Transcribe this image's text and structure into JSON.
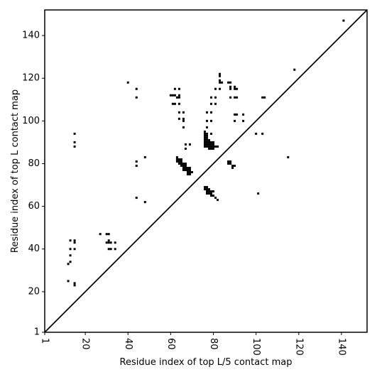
{
  "chart_data": {
    "type": "scatter",
    "title": "",
    "xlabel": "Residue index of top L/5 contact map",
    "ylabel": "Residue index of top L contact map",
    "xlim": [
      1,
      152
    ],
    "ylim": [
      1,
      152
    ],
    "xticks": [
      1,
      20,
      40,
      60,
      80,
      100,
      120,
      140
    ],
    "yticks": [
      1,
      20,
      40,
      60,
      80,
      100,
      120,
      140
    ],
    "x_tick_rotation": -90,
    "diagonal": true,
    "grid": false,
    "marker": "square",
    "color": "#000000",
    "points": [
      [
        12,
        25
      ],
      [
        12,
        33
      ],
      [
        13,
        34
      ],
      [
        13,
        37
      ],
      [
        13,
        40
      ],
      [
        13,
        44
      ],
      [
        15,
        23
      ],
      [
        15,
        24
      ],
      [
        15,
        40
      ],
      [
        15,
        43
      ],
      [
        15,
        44
      ],
      [
        15,
        88
      ],
      [
        15,
        90
      ],
      [
        15,
        94
      ],
      [
        27,
        47
      ],
      [
        30,
        43
      ],
      [
        30,
        47
      ],
      [
        31,
        40
      ],
      [
        31,
        43
      ],
      [
        31,
        44
      ],
      [
        31,
        47
      ],
      [
        32,
        40
      ],
      [
        32,
        43
      ],
      [
        34,
        40
      ],
      [
        34,
        43
      ],
      [
        40,
        118
      ],
      [
        44,
        64
      ],
      [
        44,
        79
      ],
      [
        44,
        81
      ],
      [
        44,
        111
      ],
      [
        44,
        115
      ],
      [
        48,
        62
      ],
      [
        48,
        83
      ],
      [
        60,
        112
      ],
      [
        61,
        108
      ],
      [
        61,
        112
      ],
      [
        62,
        108
      ],
      [
        62,
        112
      ],
      [
        62,
        115
      ],
      [
        63,
        81
      ],
      [
        63,
        82
      ],
      [
        63,
        83
      ],
      [
        63,
        111
      ],
      [
        64,
        80
      ],
      [
        64,
        81
      ],
      [
        64,
        82
      ],
      [
        64,
        101
      ],
      [
        64,
        104
      ],
      [
        64,
        108
      ],
      [
        64,
        111
      ],
      [
        64,
        112
      ],
      [
        64,
        115
      ],
      [
        65,
        79
      ],
      [
        65,
        80
      ],
      [
        65,
        81
      ],
      [
        65,
        82
      ],
      [
        66,
        77
      ],
      [
        66,
        78
      ],
      [
        66,
        79
      ],
      [
        66,
        80
      ],
      [
        66,
        97
      ],
      [
        66,
        100
      ],
      [
        66,
        101
      ],
      [
        66,
        104
      ],
      [
        67,
        77
      ],
      [
        67,
        78
      ],
      [
        67,
        79
      ],
      [
        67,
        80
      ],
      [
        67,
        87
      ],
      [
        67,
        89
      ],
      [
        68,
        75
      ],
      [
        68,
        76
      ],
      [
        68,
        77
      ],
      [
        68,
        78
      ],
      [
        69,
        75
      ],
      [
        69,
        76
      ],
      [
        69,
        77
      ],
      [
        69,
        78
      ],
      [
        69,
        89
      ],
      [
        70,
        76
      ],
      [
        76,
        68
      ],
      [
        76,
        69
      ],
      [
        76,
        88
      ],
      [
        76,
        89
      ],
      [
        76,
        90
      ],
      [
        76,
        91
      ],
      [
        76,
        92
      ],
      [
        76,
        93
      ],
      [
        76,
        94
      ],
      [
        76,
        95
      ],
      [
        77,
        66
      ],
      [
        77,
        67
      ],
      [
        77,
        68
      ],
      [
        77,
        69
      ],
      [
        77,
        88
      ],
      [
        77,
        89
      ],
      [
        77,
        90
      ],
      [
        77,
        91
      ],
      [
        77,
        92
      ],
      [
        77,
        93
      ],
      [
        77,
        94
      ],
      [
        77,
        97
      ],
      [
        77,
        100
      ],
      [
        77,
        104
      ],
      [
        78,
        66
      ],
      [
        78,
        67
      ],
      [
        78,
        68
      ],
      [
        78,
        87
      ],
      [
        78,
        88
      ],
      [
        78,
        89
      ],
      [
        78,
        90
      ],
      [
        78,
        91
      ],
      [
        79,
        65
      ],
      [
        79,
        66
      ],
      [
        79,
        67
      ],
      [
        79,
        87
      ],
      [
        79,
        88
      ],
      [
        79,
        89
      ],
      [
        79,
        90
      ],
      [
        79,
        94
      ],
      [
        79,
        100
      ],
      [
        79,
        104
      ],
      [
        79,
        108
      ],
      [
        79,
        111
      ],
      [
        80,
        65
      ],
      [
        80,
        67
      ],
      [
        80,
        87
      ],
      [
        80,
        88
      ],
      [
        80,
        89
      ],
      [
        80,
        90
      ],
      [
        81,
        64
      ],
      [
        81,
        88
      ],
      [
        81,
        108
      ],
      [
        81,
        111
      ],
      [
        81,
        115
      ],
      [
        82,
        63
      ],
      [
        82,
        88
      ],
      [
        83,
        115
      ],
      [
        83,
        118
      ],
      [
        83,
        119
      ],
      [
        83,
        121
      ],
      [
        83,
        122
      ],
      [
        84,
        118
      ],
      [
        87,
        80
      ],
      [
        87,
        81
      ],
      [
        87,
        118
      ],
      [
        88,
        80
      ],
      [
        88,
        81
      ],
      [
        88,
        111
      ],
      [
        88,
        115
      ],
      [
        88,
        116
      ],
      [
        88,
        118
      ],
      [
        89,
        78
      ],
      [
        89,
        79
      ],
      [
        90,
        79
      ],
      [
        90,
        100
      ],
      [
        90,
        103
      ],
      [
        90,
        111
      ],
      [
        90,
        115
      ],
      [
        90,
        116
      ],
      [
        91,
        103
      ],
      [
        91,
        111
      ],
      [
        91,
        115
      ],
      [
        94,
        100
      ],
      [
        94,
        103
      ],
      [
        100,
        94
      ],
      [
        101,
        66
      ],
      [
        103,
        94
      ],
      [
        103,
        111
      ],
      [
        104,
        111
      ],
      [
        115,
        83
      ],
      [
        118,
        124
      ],
      [
        141,
        147
      ]
    ]
  }
}
